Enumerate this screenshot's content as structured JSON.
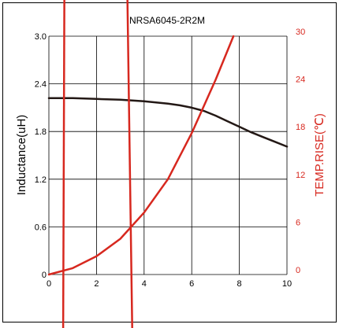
{
  "chart_data": {
    "type": "line",
    "title": "NRSA6045-2R2M",
    "xlabel": "",
    "ylabel": "Inductance(uH)",
    "y2label": "TEMP.RISE(℃)",
    "xlim": [
      0,
      10
    ],
    "ylim": [
      0,
      3.0
    ],
    "y2lim": [
      0,
      30
    ],
    "grid": true,
    "x_ticks": [
      "0",
      "2",
      "4",
      "6",
      "8",
      "10"
    ],
    "y_ticks": [
      "0",
      "0.6",
      "1.2",
      "1.8",
      "2.4",
      "3.0"
    ],
    "y2_ticks": [
      "0",
      "6",
      "12",
      "18",
      "24",
      "30"
    ],
    "colors": {
      "inductance": "#231815",
      "temp_rise": "#d7281f",
      "marker": "#d7281f",
      "frame": "#000000"
    },
    "series": [
      {
        "axis": "left",
        "x": [
          0,
          1,
          2,
          3,
          4,
          5,
          5.5,
          6,
          6.5,
          7,
          7.5,
          8,
          8.5,
          9,
          9.5,
          10
        ],
        "values": [
          2.22,
          2.22,
          2.21,
          2.2,
          2.18,
          2.15,
          2.13,
          2.1,
          2.06,
          2.0,
          1.93,
          1.86,
          1.79,
          1.73,
          1.67,
          1.61
        ]
      },
      {
        "axis": "right",
        "x": [
          0,
          1,
          2,
          3,
          4,
          5,
          6,
          7,
          7.75
        ],
        "values": [
          0,
          0.8,
          2.3,
          4.5,
          7.8,
          12.0,
          17.8,
          24.5,
          30
        ]
      }
    ],
    "markers": [
      {
        "x_top": 0.65,
        "x_bottom": 0.6
      },
      {
        "x_top": 3.3,
        "x_bottom": 3.5
      }
    ]
  }
}
